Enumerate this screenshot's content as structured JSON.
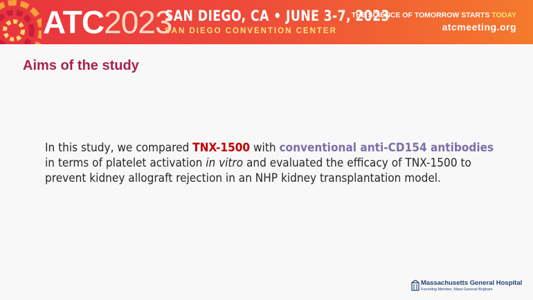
{
  "header": {
    "logo_text": "ATC",
    "logo_year": "2023",
    "location": "SAN DIEGO, CA • JUNE 3-7, 2023",
    "venue": "SAN DIEGO CONVENTION CENTER",
    "tagline": "THE SCIENCE OF TOMORROW STARTS",
    "tagline_highlight": "TODAY",
    "website": "atcmeeting.org"
  },
  "title": "Aims of the study",
  "paragraph": [
    "In this study, we compared",
    "TNX-1500",
    "with",
    "conventional anti-CD154 antibodies",
    "in terms of platelet activation",
    "in vitro",
    "and evaluated the efficacy of TNX-1500 to prevent kidney allograft rejection in an NHP kidney transplantation model."
  ],
  "footer": {
    "organization": "Massachusetts General Hospital",
    "affiliation": "Founding Member, Mass General Brigham"
  }
}
